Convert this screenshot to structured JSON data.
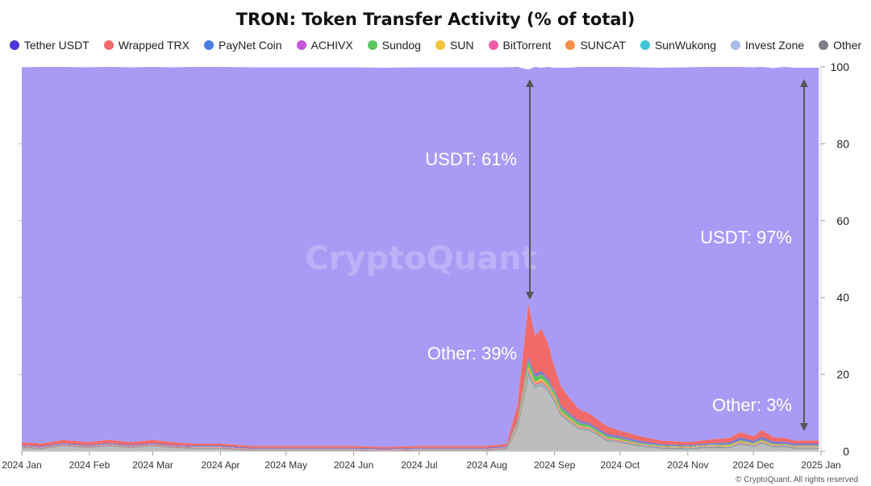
{
  "chart_data": {
    "type": "area",
    "title": "TRON: Token Transfer Activity (% of total)",
    "stacked": true,
    "xlabel": "",
    "ylabel": "",
    "ylim": [
      0,
      100
    ],
    "y_axis_side": "right",
    "y_ticks": [
      "100",
      "80",
      "60",
      "40",
      "20",
      "0"
    ],
    "x_ticks": [
      "2024 Jan",
      "2024 Feb",
      "2024 Mar",
      "2024 Apr",
      "2024 May",
      "2024 Jun",
      "2024 Jul",
      "2024 Aug",
      "2024 Sep",
      "2024 Oct",
      "2024 Nov",
      "2024 Dec",
      "2025 Jan"
    ],
    "legend_position": "top-center",
    "grid": false,
    "x": [
      "2024-01-01",
      "2024-01-10",
      "2024-01-20",
      "2024-01-31",
      "2024-02-10",
      "2024-02-20",
      "2024-03-01",
      "2024-03-10",
      "2024-03-20",
      "2024-04-01",
      "2024-04-15",
      "2024-05-01",
      "2024-05-15",
      "2024-06-01",
      "2024-06-15",
      "2024-07-01",
      "2024-07-15",
      "2024-08-01",
      "2024-08-10",
      "2024-08-15",
      "2024-08-20",
      "2024-08-23",
      "2024-08-26",
      "2024-08-29",
      "2024-09-01",
      "2024-09-04",
      "2024-09-08",
      "2024-09-12",
      "2024-09-17",
      "2024-09-25",
      "2024-10-01",
      "2024-10-10",
      "2024-10-20",
      "2024-11-01",
      "2024-11-10",
      "2024-11-20",
      "2024-11-25",
      "2024-12-01",
      "2024-12-05",
      "2024-12-10",
      "2024-12-15",
      "2024-12-20",
      "2024-12-31"
    ],
    "series": [
      {
        "name": "Tether USDT",
        "values": [
          97.5,
          98,
          97,
          97.5,
          97,
          97.5,
          97,
          97.5,
          98,
          98,
          98.5,
          98.5,
          98.5,
          98.5,
          98.7,
          98.5,
          98.5,
          98.5,
          98,
          88,
          61,
          70,
          68,
          72,
          78,
          83,
          86,
          89,
          91,
          93.5,
          95,
          96,
          97,
          97.5,
          97,
          96.5,
          95,
          96,
          94.5,
          96,
          96.5,
          97,
          97
        ]
      },
      {
        "name": "Wrapped TRX",
        "values": [
          0.8,
          0.7,
          0.9,
          0.8,
          0.9,
          0.8,
          0.9,
          0.8,
          0.6,
          0.6,
          0.5,
          0.5,
          0.5,
          0.5,
          0.4,
          0.5,
          0.5,
          0.5,
          0.6,
          4,
          14,
          10,
          11,
          9,
          6,
          5,
          4,
          3,
          2.5,
          2,
          1.5,
          1.2,
          1,
          0.8,
          1,
          1.2,
          1.5,
          1.2,
          1.8,
          1.2,
          1,
          0.8,
          0.8
        ]
      },
      {
        "name": "PayNet Coin",
        "values": [
          0.2,
          0.2,
          0.2,
          0.2,
          0.2,
          0.2,
          0.2,
          0.2,
          0.2,
          0.2,
          0.2,
          0.2,
          0.2,
          0.2,
          0.2,
          0.2,
          0.2,
          0.2,
          0.2,
          0.3,
          0.5,
          0.4,
          0.4,
          0.4,
          0.3,
          0.3,
          0.3,
          0.3,
          0.3,
          0.3,
          0.3,
          0.3,
          0.2,
          0.2,
          0.2,
          0.3,
          0.4,
          0.3,
          0.4,
          0.3,
          0.3,
          0.3,
          0.3
        ]
      },
      {
        "name": "ACHIVX",
        "values": [
          0.1,
          0.1,
          0.1,
          0.1,
          0.1,
          0.1,
          0.1,
          0.1,
          0.1,
          0.1,
          0.1,
          0.1,
          0.1,
          0.1,
          0.1,
          0.1,
          0.1,
          0.1,
          0.1,
          0.2,
          0.3,
          0.3,
          0.3,
          0.3,
          0.2,
          0.2,
          0.2,
          0.2,
          0.2,
          0.2,
          0.2,
          0.2,
          0.1,
          0.1,
          0.1,
          0.2,
          0.2,
          0.2,
          0.2,
          0.2,
          0.2,
          0.2,
          0.2
        ]
      },
      {
        "name": "Sundog",
        "values": [
          0,
          0,
          0,
          0,
          0,
          0,
          0,
          0,
          0,
          0,
          0,
          0,
          0,
          0,
          0,
          0,
          0,
          0,
          0,
          0.5,
          1.5,
          1.2,
          1.2,
          1,
          1,
          1,
          0.8,
          0.8,
          0.6,
          0.5,
          0.4,
          0.3,
          0.2,
          0.2,
          0.2,
          0.3,
          0.3,
          0.3,
          0.3,
          0.3,
          0.2,
          0.2,
          0.2
        ]
      },
      {
        "name": "SUN",
        "values": [
          0.1,
          0.1,
          0.1,
          0.1,
          0.1,
          0.1,
          0.1,
          0.1,
          0.1,
          0.1,
          0.1,
          0.1,
          0.1,
          0.1,
          0.1,
          0.1,
          0.1,
          0.1,
          0.1,
          0.3,
          0.6,
          0.5,
          0.5,
          0.4,
          0.4,
          0.3,
          0.3,
          0.2,
          0.2,
          0.2,
          0.2,
          0.1,
          0.1,
          0.1,
          0.1,
          0.2,
          0.2,
          0.2,
          0.2,
          0.2,
          0.1,
          0.1,
          0.1
        ]
      },
      {
        "name": "BitTorrent",
        "values": [
          0.1,
          0.1,
          0.1,
          0.1,
          0.1,
          0.1,
          0.1,
          0.1,
          0.1,
          0.1,
          0.1,
          0.1,
          0.1,
          0.1,
          0.1,
          0.1,
          0.1,
          0.1,
          0.1,
          0.2,
          0.4,
          0.3,
          0.3,
          0.3,
          0.3,
          0.2,
          0.2,
          0.2,
          0.2,
          0.2,
          0.2,
          0.1,
          0.1,
          0.1,
          0.1,
          0.1,
          0.2,
          0.1,
          0.2,
          0.1,
          0.1,
          0.1,
          0.1
        ]
      },
      {
        "name": "SUNCAT",
        "values": [
          0,
          0,
          0,
          0,
          0,
          0,
          0,
          0,
          0,
          0,
          0,
          0,
          0,
          0,
          0,
          0,
          0,
          0,
          0,
          0.2,
          0.4,
          0.3,
          0.3,
          0.3,
          0.3,
          0.2,
          0.2,
          0.2,
          0.1,
          0.1,
          0.1,
          0.1,
          0.1,
          0.1,
          0.1,
          0.1,
          0.1,
          0.1,
          0.1,
          0.1,
          0.1,
          0.1,
          0.1
        ]
      },
      {
        "name": "SunWukong",
        "values": [
          0,
          0,
          0,
          0,
          0,
          0,
          0,
          0,
          0,
          0,
          0,
          0,
          0,
          0,
          0,
          0,
          0,
          0,
          0,
          0.1,
          0.3,
          0.2,
          0.2,
          0.2,
          0.2,
          0.1,
          0.1,
          0.1,
          0.1,
          0.1,
          0.1,
          0.1,
          0.1,
          0.1,
          0.1,
          0.1,
          0.1,
          0.1,
          0.1,
          0.1,
          0.1,
          0.1,
          0.1
        ]
      },
      {
        "name": "Invest Zone",
        "values": [
          0.1,
          0.1,
          0.1,
          0.1,
          0.1,
          0.1,
          0.1,
          0.1,
          0.1,
          0.1,
          0.1,
          0.1,
          0.1,
          0.1,
          0.1,
          0.1,
          0.1,
          0.1,
          0.1,
          0.2,
          0.3,
          0.3,
          0.3,
          0.3,
          0.2,
          0.2,
          0.2,
          0.2,
          0.1,
          0.1,
          0.1,
          0.1,
          0.1,
          0.1,
          0.1,
          0.1,
          0.1,
          0.1,
          0.1,
          0.1,
          0.1,
          0.1,
          0.1
        ]
      },
      {
        "name": "Other",
        "values": [
          1,
          0.7,
          1.5,
          1,
          1.5,
          1,
          1.5,
          1,
          0.8,
          0.8,
          0.3,
          0.3,
          0.3,
          0.3,
          0.1,
          0.3,
          0.3,
          0.3,
          0.7,
          6,
          20,
          16.5,
          17.3,
          15.8,
          12.9,
          9.3,
          7.5,
          5.8,
          5.5,
          2.8,
          2.3,
          1.4,
          0.8,
          0.6,
          1,
          0.9,
          1.9,
          1.3,
          2.1,
          1.1,
          1.3,
          0.8,
          0.8
        ]
      }
    ],
    "annotations": [
      {
        "text": "USDT: 61%",
        "x": "2024-08-20"
      },
      {
        "text": "Other: 39%",
        "x": "2024-08-20"
      },
      {
        "text": "USDT: 97%",
        "x": "2024-12-31"
      },
      {
        "text": "Other: 3%",
        "x": "2024-12-31"
      }
    ],
    "colors": {
      "Tether USDT": "#a99bf5",
      "Wrapped TRX": "#f06a6a",
      "PayNet Coin": "#4a7de0",
      "ACHIVX": "#c458d8",
      "Sundog": "#5cc461",
      "SUN": "#f5c33b",
      "BitTorrent": "#ee5fa7",
      "SUNCAT": "#f48f47",
      "SunWukong": "#3fc6d8",
      "Invest Zone": "#a7bde8",
      "Other": "#bdbdbd"
    },
    "legend_colors": {
      "Tether USDT": "#4b36d9",
      "Wrapped TRX": "#f06a6a",
      "PayNet Coin": "#4a7de0",
      "ACHIVX": "#c458d8",
      "Sundog": "#5cc461",
      "SUN": "#f5c33b",
      "BitTorrent": "#ee5fa7",
      "SUNCAT": "#f48f47",
      "SunWukong": "#3fc6d8",
      "Invest Zone": "#a7bde8",
      "Other": "#7d7d85"
    }
  },
  "watermark": "CryptoQuant",
  "copyright": "© CryptoQuant. All rights reserved"
}
